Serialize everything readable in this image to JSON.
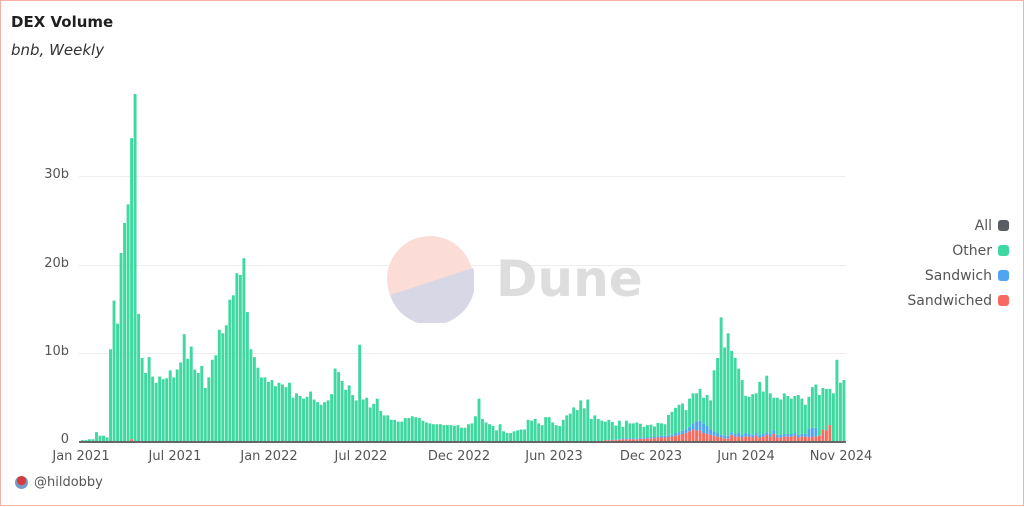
{
  "header": {
    "title": "DEX Volume",
    "subtitle": "bnb, Weekly"
  },
  "legend": [
    {
      "label": "All",
      "color": "#5a5d63"
    },
    {
      "label": "Other",
      "color": "#3fd8a0"
    },
    {
      "label": "Sandwich",
      "color": "#50a5f2"
    },
    {
      "label": "Sandwiched",
      "color": "#f76a5f"
    }
  ],
  "watermark": "Dune",
  "author": "@hildobby",
  "chart_data": {
    "type": "bar",
    "stacked": true,
    "title": "DEX Volume",
    "subtitle": "bnb, Weekly",
    "xlabel": "",
    "ylabel": "",
    "ylim": [
      0,
      40
    ],
    "y_unit": "billions USD",
    "y_ticks": [
      "0",
      "10b",
      "20b",
      "30b"
    ],
    "x_ticks": [
      "Jan 2021",
      "Jul 2021",
      "Jan 2022",
      "Jul 2022",
      "Dec 2022",
      "Jun 2023",
      "Dec 2023",
      "Jun 2024",
      "Nov 2024"
    ],
    "grid": true,
    "legend_position": "right",
    "series_names": [
      "Other",
      "Sandwich",
      "Sandwiched"
    ],
    "other": [
      0.1,
      0.1,
      0.2,
      0.2,
      1.0,
      0.6,
      0.6,
      0.4,
      10.4,
      15.9,
      13.3,
      21.3,
      24.7,
      26.8,
      34.1,
      39.3,
      14.4,
      9.4,
      7.7,
      9.5,
      7.3,
      6.6,
      7.3,
      7.0,
      7.1,
      8.0,
      7.2,
      8.1,
      8.9,
      12.1,
      9.3,
      10.7,
      8.1,
      7.7,
      8.5,
      6.0,
      7.2,
      9.2,
      9.7,
      12.6,
      12.2,
      13.1,
      16.0,
      16.5,
      19.0,
      18.8,
      20.7,
      14.6,
      10.4,
      9.5,
      8.3,
      7.2,
      7.2,
      6.7,
      6.9,
      6.2,
      6.6,
      6.4,
      6.1,
      6.6,
      4.9,
      5.4,
      5.1,
      4.8,
      5.0,
      5.6,
      4.7,
      4.4,
      4.1,
      4.4,
      4.6,
      5.3,
      8.2,
      7.8,
      6.8,
      5.8,
      6.3,
      5.2,
      4.6,
      10.9,
      4.7,
      4.9,
      3.8,
      4.2,
      4.8,
      3.4,
      2.9,
      2.9,
      2.4,
      2.4,
      2.2,
      2.2,
      2.6,
      2.6,
      2.8,
      2.7,
      2.6,
      2.3,
      2.1,
      2.0,
      1.9,
      1.9,
      1.9,
      1.8,
      1.8,
      1.8,
      1.7,
      1.8,
      1.5,
      1.5,
      1.9,
      2.0,
      2.8,
      4.8,
      2.5,
      2.1,
      1.9,
      1.7,
      1.2,
      1.9,
      1.1,
      0.9,
      0.9,
      1.1,
      1.2,
      1.3,
      1.3,
      2.4,
      2.3,
      2.5,
      2.0,
      1.8,
      2.7,
      2.7,
      2.1,
      1.8,
      1.7,
      2.4,
      2.9,
      3.1,
      3.8,
      3.5,
      4.6,
      3.7,
      4.7,
      2.5,
      2.9,
      2.5,
      2.3,
      2.1,
      2.3,
      2.0,
      1.6,
      2.1,
      1.3,
      2.0,
      1.7,
      1.7,
      1.8,
      1.6,
      1.2,
      1.4,
      1.4,
      1.2,
      1.5,
      1.4,
      1.3,
      2.3,
      2.6,
      2.9,
      3.1,
      3.1,
      2.2,
      3.2,
      3.4,
      3.2,
      3.6,
      2.9,
      3.5,
      3.3,
      6.9,
      8.5,
      13.3,
      10.0,
      11.6,
      9.2,
      8.6,
      7.3,
      6.2,
      4.2,
      4.2,
      4.6,
      4.5,
      6.0,
      4.8,
      6.4,
      4.6,
      3.7,
      4.2,
      4.0,
      4.6,
      4.3,
      4.0,
      4.2,
      4.5,
      4.0,
      3.3,
      3.6,
      4.6,
      4.9,
      4.6,
      4.7,
      4.7,
      4.1,
      5.4,
      9.2,
      6.6,
      6.9
    ],
    "sandwich": [
      0,
      0,
      0,
      0,
      0,
      0,
      0,
      0,
      0,
      0,
      0,
      0,
      0,
      0,
      0,
      0,
      0,
      0,
      0,
      0,
      0,
      0,
      0,
      0,
      0,
      0,
      0,
      0,
      0,
      0,
      0,
      0,
      0,
      0,
      0,
      0,
      0,
      0,
      0,
      0,
      0,
      0,
      0,
      0,
      0,
      0,
      0,
      0,
      0,
      0,
      0,
      0,
      0,
      0,
      0,
      0,
      0,
      0,
      0,
      0,
      0,
      0,
      0,
      0,
      0,
      0,
      0,
      0,
      0,
      0,
      0,
      0,
      0,
      0,
      0,
      0,
      0,
      0,
      0,
      0,
      0,
      0,
      0,
      0,
      0,
      0,
      0,
      0,
      0,
      0,
      0,
      0,
      0,
      0,
      0,
      0,
      0,
      0,
      0,
      0,
      0,
      0,
      0,
      0,
      0,
      0,
      0,
      0,
      0,
      0,
      0,
      0,
      0,
      0,
      0,
      0,
      0,
      0,
      0,
      0,
      0,
      0,
      0,
      0,
      0,
      0,
      0,
      0,
      0,
      0,
      0,
      0,
      0,
      0,
      0,
      0,
      0,
      0,
      0,
      0,
      0,
      0,
      0,
      0,
      0,
      0,
      0,
      0,
      0,
      0,
      0,
      0.05,
      0.05,
      0.05,
      0.1,
      0.1,
      0.1,
      0.1,
      0.1,
      0.1,
      0.15,
      0.1,
      0.15,
      0.15,
      0.15,
      0.2,
      0.2,
      0.2,
      0.2,
      0.25,
      0.3,
      0.35,
      0.4,
      0.5,
      0.7,
      1.0,
      1.1,
      1.1,
      0.9,
      0.6,
      0.5,
      0.4,
      0.3,
      0.3,
      0.3,
      0.3,
      0.3,
      0.4,
      0.3,
      0.4,
      0.3,
      0.3,
      0.3,
      0.3,
      0.3,
      0.3,
      0.3,
      0.4,
      0.3,
      0.3,
      0.3,
      0.3,
      0.3,
      0.3,
      0.3,
      0.3,
      0.3,
      1.0,
      1.0,
      1.0
    ],
    "sandwiched": [
      0,
      0,
      0,
      0,
      0,
      0,
      0,
      0,
      0,
      0,
      0,
      0,
      0,
      0,
      0.2,
      0,
      0,
      0,
      0,
      0,
      0,
      0,
      0,
      0,
      0,
      0,
      0,
      0,
      0,
      0,
      0,
      0,
      0,
      0,
      0,
      0,
      0,
      0,
      0,
      0,
      0,
      0,
      0,
      0,
      0,
      0,
      0,
      0,
      0,
      0,
      0,
      0,
      0,
      0,
      0,
      0,
      0,
      0,
      0,
      0,
      0,
      0,
      0,
      0,
      0,
      0,
      0,
      0,
      0,
      0,
      0,
      0,
      0,
      0,
      0,
      0,
      0,
      0,
      0,
      0,
      0,
      0,
      0,
      0,
      0,
      0,
      0,
      0,
      0,
      0,
      0,
      0,
      0,
      0,
      0,
      0,
      0,
      0,
      0,
      0,
      0,
      0,
      0,
      0,
      0,
      0,
      0,
      0,
      0,
      0,
      0,
      0,
      0,
      0,
      0,
      0,
      0,
      0,
      0,
      0,
      0,
      0,
      0,
      0,
      0,
      0,
      0,
      0,
      0,
      0,
      0,
      0,
      0,
      0,
      0,
      0,
      0,
      0,
      0,
      0,
      0,
      0,
      0,
      0,
      0,
      0,
      0,
      0,
      0,
      0.1,
      0.1,
      0.1,
      0.1,
      0.15,
      0.2,
      0.2,
      0.2,
      0.2,
      0.2,
      0.25,
      0.25,
      0.3,
      0.3,
      0.3,
      0.4,
      0.4,
      0.4,
      0.45,
      0.5,
      0.6,
      0.7,
      0.8,
      0.9,
      1.1,
      1.3,
      1.2,
      1.2,
      0.9,
      0.8,
      0.7,
      0.6,
      0.5,
      0.4,
      0.3,
      0.3,
      0.7,
      0.5,
      0.5,
      0.4,
      0.5,
      0.5,
      0.4,
      0.6,
      0.4,
      0.5,
      0.7,
      0.5,
      0.8,
      0.4,
      0.4,
      0.5,
      0.5,
      0.5,
      0.6,
      0.4,
      0.5,
      0.5,
      0.4,
      0.5,
      0.5,
      0.6,
      1.3,
      1.2,
      1.8
    ]
  }
}
